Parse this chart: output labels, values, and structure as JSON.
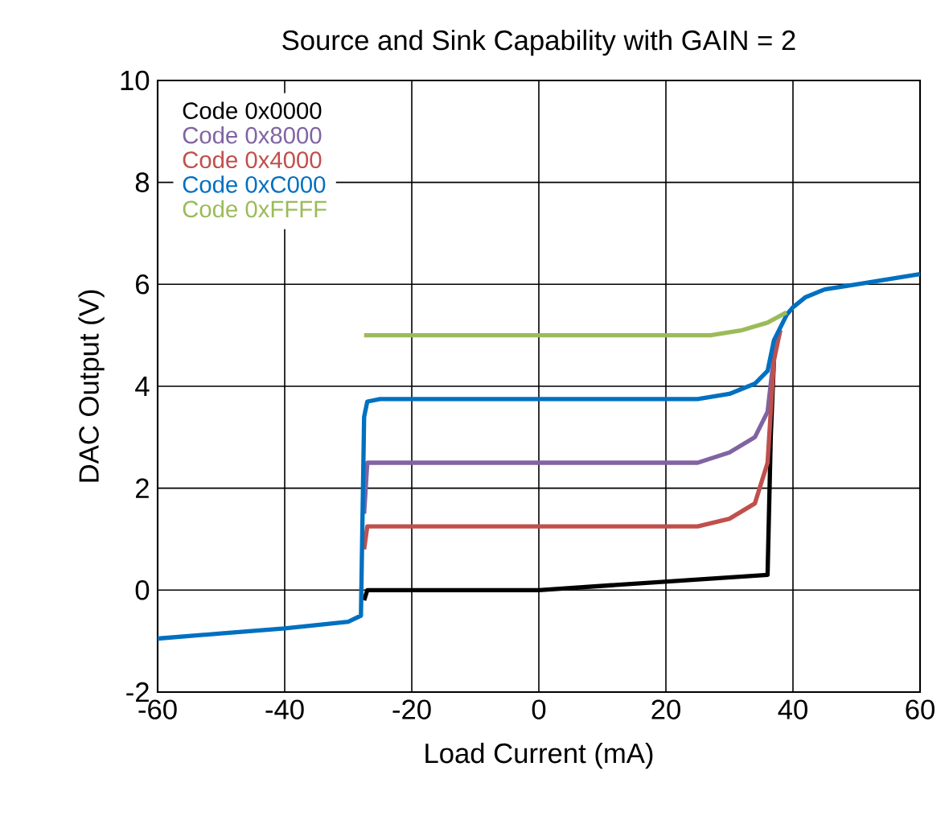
{
  "chart_data": {
    "type": "line",
    "title": "Source and Sink Capability with GAIN = 2",
    "xlabel": "Load Current (mA)",
    "ylabel": "DAC Output (V)",
    "xlim": [
      -60,
      60
    ],
    "xticks": [
      -60,
      -40,
      -20,
      0,
      20,
      40,
      60
    ],
    "ylim": [
      -2,
      10
    ],
    "yticks": [
      -2,
      0,
      2,
      4,
      6,
      8,
      10
    ],
    "grid": true,
    "legend": "top left",
    "line_style": "solid",
    "marker": "none",
    "series": [
      {
        "name": "Code 0x0000",
        "color": "#000000",
        "x": [
          -27.5,
          -27,
          0,
          36,
          36.5,
          37
        ],
        "values": [
          -0.2,
          0,
          0,
          0.3,
          3,
          4.5
        ]
      },
      {
        "name": "Code 0x8000",
        "color": "#8064a2",
        "x": [
          -27.5,
          -27,
          25,
          30,
          34,
          36,
          37,
          38
        ],
        "values": [
          1.5,
          2.5,
          2.5,
          2.7,
          3.0,
          3.5,
          4.6,
          5.1
        ]
      },
      {
        "name": "Code 0x4000",
        "color": "#c0504d",
        "x": [
          -27.5,
          -27,
          25,
          30,
          34,
          36,
          37,
          38
        ],
        "values": [
          0.8,
          1.25,
          1.25,
          1.4,
          1.7,
          2.5,
          4.5,
          5.1
        ]
      },
      {
        "name": "Code 0xC000",
        "color": "#0070c0",
        "x": [
          -60,
          -50,
          -40,
          -30,
          -28,
          -27.5,
          -27,
          -25,
          25,
          30,
          34,
          36,
          37,
          39,
          40,
          42,
          45,
          50,
          55,
          60
        ],
        "values": [
          -0.95,
          -0.85,
          -0.75,
          -0.62,
          -0.5,
          3.4,
          3.7,
          3.75,
          3.75,
          3.85,
          4.05,
          4.3,
          4.9,
          5.4,
          5.55,
          5.75,
          5.9,
          6.0,
          6.1,
          6.2
        ]
      },
      {
        "name": "Code 0xFFFF",
        "color": "#9bbb59",
        "x": [
          -27.5,
          -27,
          27,
          32,
          36,
          39
        ],
        "values": [
          5.0,
          5.0,
          5.0,
          5.1,
          5.25,
          5.45
        ]
      }
    ]
  }
}
